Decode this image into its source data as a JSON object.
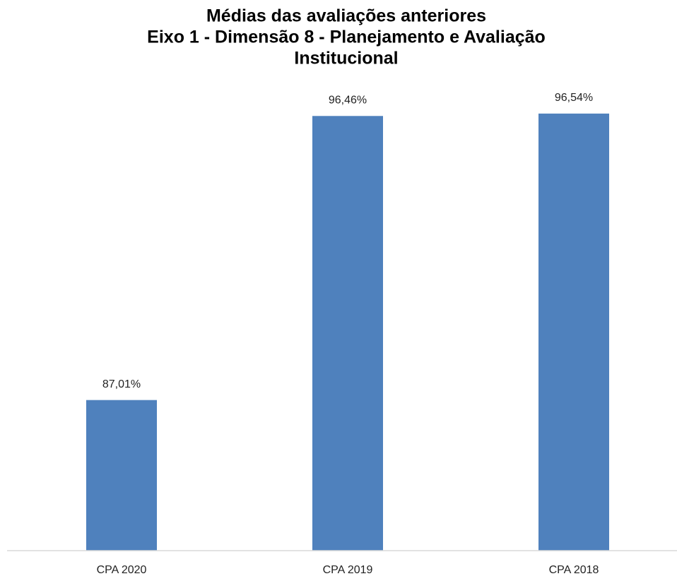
{
  "chart_data": {
    "type": "bar",
    "title": [
      "Médias das avaliações anteriores",
      "Eixo 1 - Dimensão 8 - Planejamento e Avaliação",
      "Institucional"
    ],
    "categories": [
      "CPA 2020",
      "CPA 2019",
      "CPA 2018"
    ],
    "values": [
      87.01,
      96.46,
      96.54
    ],
    "value_labels": [
      "87,01%",
      "96,46%",
      "96,54%"
    ],
    "color": "#4f81bd",
    "ylim": [
      82,
      97.5
    ]
  }
}
